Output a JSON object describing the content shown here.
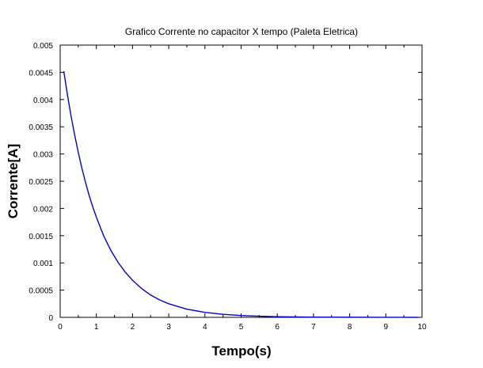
{
  "chart_data": {
    "type": "line",
    "title": "Grafico Corrente no capacitor X tempo (Paleta Eletrica)",
    "xlabel": "Tempo(s)",
    "ylabel": "Corrente[A]",
    "xlim": [
      0,
      10
    ],
    "ylim": [
      0,
      0.005
    ],
    "x_ticks": [
      0,
      1,
      2,
      3,
      4,
      5,
      6,
      7,
      8,
      9,
      10
    ],
    "x_tick_labels": [
      "0",
      "1",
      "2",
      "3",
      "4",
      "5",
      "6",
      "7",
      "8",
      "9",
      "10"
    ],
    "y_ticks": [
      0,
      0.0005,
      0.001,
      0.0015,
      0.002,
      0.0025,
      0.003,
      0.0035,
      0.004,
      0.0045,
      0.005
    ],
    "y_tick_labels": [
      "0",
      "0.0005",
      "0.001",
      "0.0015",
      "0.002",
      "0.0025",
      "0.003",
      "0.0035",
      "0.004",
      "0.0045",
      "0.005"
    ],
    "grid": false,
    "legend": "none",
    "series": [
      {
        "color": "#0000cc",
        "x": [
          0.1,
          0.2,
          0.3,
          0.4,
          0.5,
          0.6,
          0.7,
          0.8,
          0.9,
          1.0,
          1.2,
          1.4,
          1.6,
          1.8,
          2.0,
          2.25,
          2.5,
          2.75,
          3.0,
          3.5,
          4.0,
          4.5,
          5.0,
          5.5,
          6.0,
          7.0,
          8.0,
          9.0,
          9.9
        ],
        "y": [
          0.00452,
          0.00409,
          0.0037,
          0.00335,
          0.00303,
          0.00274,
          0.00248,
          0.00224,
          0.00203,
          0.00184,
          0.0015,
          0.00123,
          0.00101,
          0.00083,
          0.00068,
          0.00053,
          0.00041,
          0.00032,
          0.00025,
          0.00015,
          9.2e-05,
          5.6e-05,
          3.4e-05,
          2.1e-05,
          1.2e-05,
          4.6e-06,
          1.7e-06,
          6e-07,
          2e-07
        ]
      }
    ]
  }
}
